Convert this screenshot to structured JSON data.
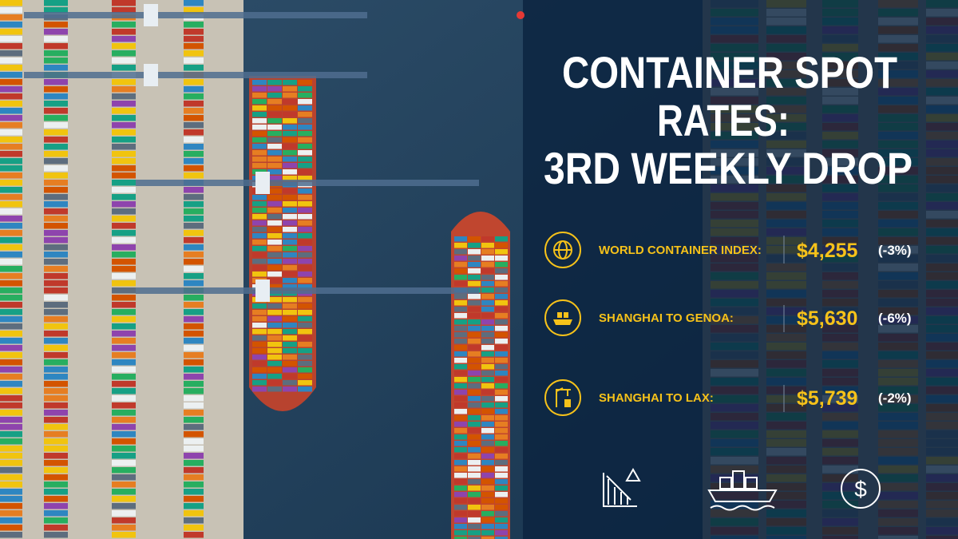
{
  "header": {
    "title_lines": [
      "CONTAINER SPOT",
      "RATES:",
      "3RD WEEKLY DROP"
    ]
  },
  "rows": [
    {
      "label": "WORLD CONTAINER INDEX:",
      "value": "$4,255",
      "change": "(-3%)"
    },
    {
      "label": "SHANGHAI TO GENOA:",
      "value": "$5,630",
      "change": "(-6%)"
    },
    {
      "label": "SHANGHAI TO LAX:",
      "value": "$5,739",
      "change": "(-2%)"
    }
  ]
}
